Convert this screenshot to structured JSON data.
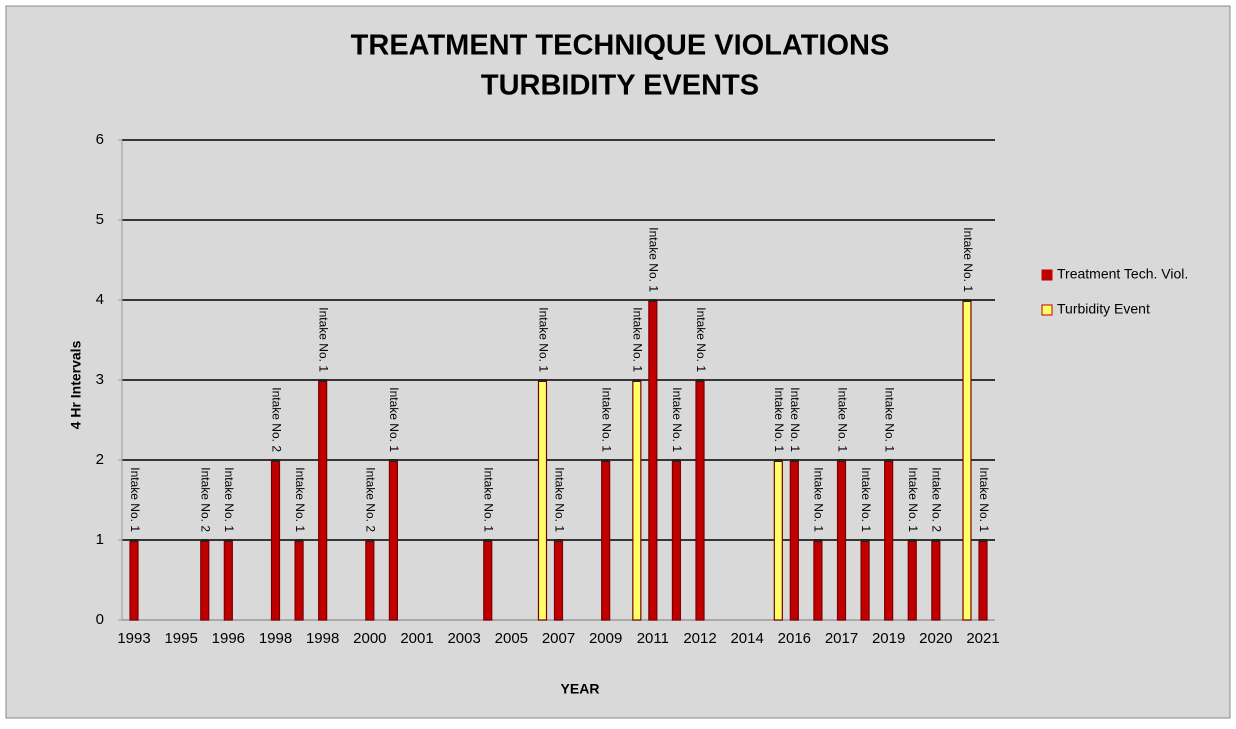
{
  "chart_data": {
    "type": "bar",
    "title": [
      "TREATMENT TECHNIQUE VIOLATIONS",
      "TURBIDITY EVENTS"
    ],
    "x_label": "YEAR",
    "y_label": "4 Hr Intervals",
    "categories": [
      "1993",
      null,
      "1995",
      null,
      "1996",
      null,
      "1998",
      null,
      "1998",
      null,
      "2000",
      null,
      "2001",
      null,
      "2003",
      null,
      "2005",
      null,
      "2007",
      null,
      "2009",
      null,
      "2011",
      null,
      "2012",
      null,
      "2014",
      null,
      "2016",
      null,
      "2017",
      null,
      "2019",
      null,
      "2020",
      null,
      "2021"
    ],
    "series": [
      {
        "name": "Treatment Tech. Viol.",
        "color": "#c00000",
        "values": [
          1,
          null,
          null,
          1,
          1,
          null,
          2,
          1,
          3,
          null,
          1,
          2,
          null,
          null,
          null,
          1,
          null,
          null,
          1,
          null,
          2,
          null,
          4,
          2,
          3,
          null,
          null,
          null,
          2,
          1,
          2,
          1,
          2,
          1,
          1,
          null,
          1
        ],
        "bar_labels": [
          "Intake No. 1",
          null,
          null,
          "Intake No. 2",
          "Intake No. 1",
          null,
          "Intake No. 2",
          "Intake No. 1",
          "Intake No. 1",
          null,
          "Intake No. 2",
          "Intake No. 1",
          null,
          null,
          null,
          "Intake No. 1",
          null,
          null,
          "Intake No. 1",
          null,
          "Intake No. 1",
          null,
          "Intake No. 1",
          "Intake No. 1",
          "Intake No. 1",
          null,
          null,
          null,
          "Intake No. 1",
          "Intake No. 1",
          "Intake No. 1",
          "Intake No. 1",
          "Intake No. 1",
          "Intake No. 1",
          "Intake No. 2",
          null,
          "Intake No. 1"
        ]
      },
      {
        "name": "Turbidity Event",
        "color": "#ffff66",
        "values": [
          null,
          null,
          null,
          null,
          null,
          null,
          null,
          null,
          null,
          null,
          null,
          null,
          null,
          null,
          null,
          null,
          null,
          null,
          3,
          null,
          null,
          null,
          3,
          null,
          null,
          null,
          null,
          null,
          2,
          null,
          null,
          null,
          null,
          null,
          null,
          null,
          4
        ],
        "bar_labels": [
          null,
          null,
          null,
          null,
          null,
          null,
          null,
          null,
          null,
          null,
          null,
          null,
          null,
          null,
          null,
          null,
          null,
          null,
          "Intake No. 1",
          null,
          null,
          null,
          "Intake No. 1",
          null,
          null,
          null,
          null,
          null,
          "Intake No. 1",
          null,
          null,
          null,
          null,
          null,
          null,
          null,
          "Intake No. 1"
        ]
      }
    ],
    "ylim": [
      0,
      6
    ],
    "yticks": [
      0,
      1,
      2,
      3,
      4,
      5,
      6
    ],
    "grid": true,
    "legend": "right"
  }
}
